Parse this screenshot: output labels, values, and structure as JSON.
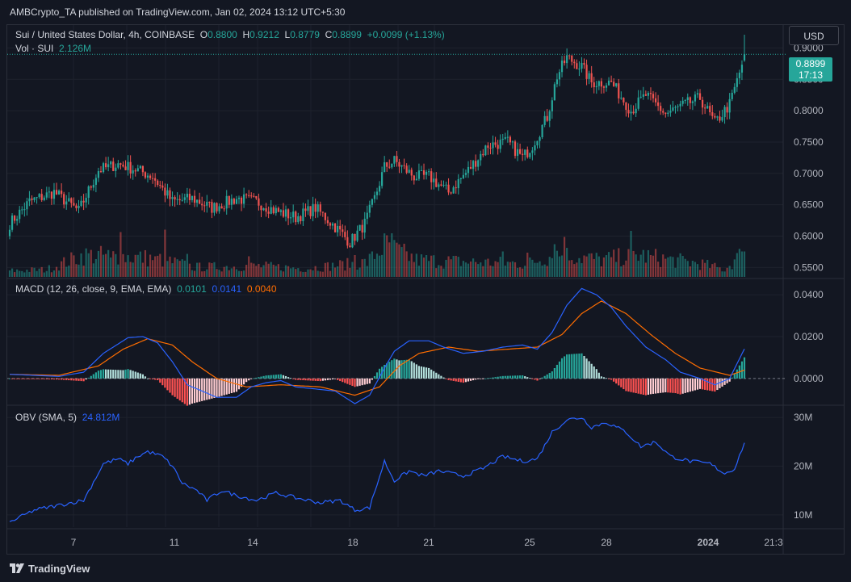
{
  "header": {
    "published": "AMBCrypto_TA published on TradingView.com, Jan 02, 2024 13:12 UTC+5:30"
  },
  "toolbar": {
    "currency": "USD"
  },
  "legend": {
    "symbol": "Sui / United States Dollar, 4h, COINBASE",
    "o_label": "O",
    "o_value": "0.8800",
    "h_label": "H",
    "h_value": "0.9212",
    "l_label": "L",
    "l_value": "0.8779",
    "c_label": "C",
    "c_value": "0.8899",
    "change": "+0.0099 (+1.13%)",
    "vol_label": "Vol · SUI",
    "vol_value": "2.126M"
  },
  "price_tag": {
    "price": "0.8899",
    "countdown": "17:13"
  },
  "macd_legend": {
    "name": "MACD (12, 26, close, 9, EMA, EMA)",
    "hist": "0.0101",
    "macd": "0.0141",
    "signal": "0.0040"
  },
  "obv_legend": {
    "name": "OBV (SMA, 5)",
    "value": "24.812M"
  },
  "footer": {
    "brand": "TradingView"
  },
  "colors": {
    "up": "#26a69a",
    "down": "#ef5350",
    "macd": "#2962ff",
    "signal": "#ff6d00",
    "obv": "#2962ff",
    "hist_up_strong": "#26a69a",
    "hist_up_weak": "#b2dfdb",
    "hist_down_strong": "#ff5252",
    "hist_down_weak": "#ffcdd2"
  },
  "chart_data": [
    {
      "type": "candlestick",
      "title": "Sui / United States Dollar, 4h, COINBASE",
      "x_ticks": [
        "7",
        "11",
        "14",
        "18",
        "21",
        "25",
        "28",
        "2024",
        "21:3"
      ],
      "y_ticks": [
        "0.5500",
        "0.6000",
        "0.6500",
        "0.7000",
        "0.7500",
        "0.8000",
        "0.8500",
        "0.9000"
      ],
      "ylim": [
        0.535,
        0.925
      ],
      "close_anchors": [
        [
          0,
          0.62
        ],
        [
          8,
          0.655
        ],
        [
          18,
          0.67
        ],
        [
          28,
          0.64
        ],
        [
          36,
          0.705
        ],
        [
          44,
          0.715
        ],
        [
          52,
          0.705
        ],
        [
          58,
          0.695
        ],
        [
          66,
          0.655
        ],
        [
          74,
          0.66
        ],
        [
          82,
          0.645
        ],
        [
          92,
          0.66
        ],
        [
          100,
          0.655
        ],
        [
          108,
          0.64
        ],
        [
          116,
          0.63
        ],
        [
          124,
          0.645
        ],
        [
          132,
          0.615
        ],
        [
          138,
          0.59
        ],
        [
          144,
          0.62
        ],
        [
          148,
          0.66
        ],
        [
          152,
          0.71
        ],
        [
          156,
          0.72
        ],
        [
          164,
          0.695
        ],
        [
          170,
          0.695
        ],
        [
          178,
          0.67
        ],
        [
          186,
          0.705
        ],
        [
          194,
          0.745
        ],
        [
          202,
          0.75
        ],
        [
          208,
          0.725
        ],
        [
          212,
          0.745
        ],
        [
          218,
          0.79
        ],
        [
          222,
          0.855
        ],
        [
          226,
          0.885
        ],
        [
          232,
          0.87
        ],
        [
          236,
          0.845
        ],
        [
          244,
          0.845
        ],
        [
          252,
          0.8
        ],
        [
          258,
          0.825
        ],
        [
          266,
          0.795
        ],
        [
          274,
          0.81
        ],
        [
          280,
          0.82
        ],
        [
          286,
          0.78
        ],
        [
          292,
          0.81
        ],
        [
          296,
          0.86
        ],
        [
          298,
          0.889
        ]
      ],
      "last": {
        "open": 0.88,
        "high": 0.9212,
        "low": 0.8779,
        "close": 0.8899
      },
      "volume_anchors": [
        [
          0,
          0.5
        ],
        [
          15,
          0.6
        ],
        [
          30,
          1.8
        ],
        [
          45,
          1.7
        ],
        [
          60,
          1.5
        ],
        [
          75,
          0.8
        ],
        [
          100,
          0.9
        ],
        [
          120,
          0.7
        ],
        [
          135,
          1.0
        ],
        [
          145,
          1.2
        ],
        [
          152,
          2.6
        ],
        [
          165,
          1.4
        ],
        [
          190,
          1.2
        ],
        [
          210,
          1.1
        ],
        [
          222,
          1.9
        ],
        [
          240,
          1.4
        ],
        [
          255,
          1.8
        ],
        [
          265,
          1.5
        ],
        [
          280,
          1.1
        ],
        [
          290,
          0.6
        ],
        [
          298,
          2.1
        ]
      ],
      "volume_spikes": [
        [
          41,
          1.6
        ],
        [
          45,
          3.7
        ],
        [
          59,
          1.7
        ],
        [
          63,
          3.9
        ],
        [
          72,
          1.9
        ],
        [
          97,
          1.7
        ],
        [
          140,
          1.8
        ],
        [
          155,
          3.6
        ],
        [
          200,
          2.1
        ],
        [
          210,
          2.0
        ],
        [
          221,
          2.7
        ],
        [
          225,
          3.3
        ],
        [
          252,
          3.8
        ],
        [
          260,
          1.8
        ],
        [
          297,
          2.1
        ],
        [
          298,
          2.1
        ]
      ]
    },
    {
      "type": "macd",
      "title": "MACD (12, 26, close, 9, EMA, EMA)",
      "y_ticks": [
        "0.0000",
        "0.0200",
        "0.0400"
      ],
      "ylim": [
        -0.012,
        0.047
      ],
      "macd_anchors": [
        [
          0,
          0.002
        ],
        [
          10,
          0.0015
        ],
        [
          20,
          0.001
        ],
        [
          30,
          0.003
        ],
        [
          38,
          0.012
        ],
        [
          48,
          0.0195
        ],
        [
          54,
          0.02
        ],
        [
          60,
          0.017
        ],
        [
          66,
          0.008
        ],
        [
          72,
          -0.003
        ],
        [
          78,
          -0.006
        ],
        [
          84,
          -0.009
        ],
        [
          92,
          -0.009
        ],
        [
          98,
          -0.004
        ],
        [
          104,
          -0.002
        ],
        [
          110,
          -0.001
        ],
        [
          116,
          -0.004
        ],
        [
          124,
          -0.005
        ],
        [
          132,
          -0.006
        ],
        [
          140,
          -0.012
        ],
        [
          146,
          -0.008
        ],
        [
          152,
          0.005
        ],
        [
          156,
          0.013
        ],
        [
          162,
          0.018
        ],
        [
          170,
          0.018
        ],
        [
          176,
          0.015
        ],
        [
          184,
          0.012
        ],
        [
          192,
          0.013
        ],
        [
          200,
          0.015
        ],
        [
          208,
          0.016
        ],
        [
          214,
          0.014
        ],
        [
          220,
          0.022
        ],
        [
          226,
          0.035
        ],
        [
          232,
          0.043
        ],
        [
          238,
          0.04
        ],
        [
          244,
          0.034
        ],
        [
          250,
          0.025
        ],
        [
          258,
          0.015
        ],
        [
          266,
          0.009
        ],
        [
          272,
          0.003
        ],
        [
          280,
          0.0
        ],
        [
          286,
          -0.003
        ],
        [
          292,
          0.0
        ],
        [
          298,
          0.0141
        ]
      ],
      "signal_anchors": [
        [
          0,
          0.002
        ],
        [
          20,
          0.0015
        ],
        [
          36,
          0.006
        ],
        [
          46,
          0.014
        ],
        [
          56,
          0.019
        ],
        [
          66,
          0.016
        ],
        [
          74,
          0.008
        ],
        [
          84,
          0.0
        ],
        [
          96,
          -0.004
        ],
        [
          110,
          -0.003
        ],
        [
          126,
          -0.004
        ],
        [
          140,
          -0.008
        ],
        [
          150,
          -0.004
        ],
        [
          158,
          0.006
        ],
        [
          166,
          0.012
        ],
        [
          178,
          0.015
        ],
        [
          190,
          0.013
        ],
        [
          202,
          0.014
        ],
        [
          214,
          0.015
        ],
        [
          224,
          0.021
        ],
        [
          232,
          0.031
        ],
        [
          240,
          0.037
        ],
        [
          250,
          0.031
        ],
        [
          260,
          0.021
        ],
        [
          270,
          0.012
        ],
        [
          280,
          0.005
        ],
        [
          292,
          0.0015
        ],
        [
          298,
          0.004
        ]
      ]
    },
    {
      "type": "line",
      "title": "OBV (SMA, 5)",
      "y_ticks": [
        "10M",
        "20M",
        "30M"
      ],
      "ylim": [
        8,
        32
      ],
      "obv_anchors": [
        [
          0,
          8.5
        ],
        [
          10,
          11
        ],
        [
          20,
          12
        ],
        [
          30,
          13
        ],
        [
          38,
          20.5
        ],
        [
          44,
          21.5
        ],
        [
          48,
          20.5
        ],
        [
          52,
          22
        ],
        [
          56,
          23
        ],
        [
          62,
          22
        ],
        [
          66,
          20
        ],
        [
          70,
          16.5
        ],
        [
          76,
          15
        ],
        [
          80,
          13
        ],
        [
          86,
          15
        ],
        [
          92,
          14
        ],
        [
          100,
          13
        ],
        [
          108,
          14.5
        ],
        [
          116,
          13.5
        ],
        [
          126,
          12.5
        ],
        [
          134,
          13
        ],
        [
          140,
          11
        ],
        [
          146,
          11.5
        ],
        [
          152,
          21
        ],
        [
          156,
          17
        ],
        [
          162,
          19
        ],
        [
          168,
          18
        ],
        [
          174,
          19
        ],
        [
          184,
          18
        ],
        [
          192,
          19.5
        ],
        [
          200,
          22
        ],
        [
          208,
          21
        ],
        [
          214,
          21.5
        ],
        [
          220,
          27
        ],
        [
          226,
          29.5
        ],
        [
          232,
          30
        ],
        [
          236,
          28
        ],
        [
          242,
          29
        ],
        [
          250,
          27
        ],
        [
          256,
          24
        ],
        [
          262,
          25
        ],
        [
          268,
          22
        ],
        [
          276,
          21
        ],
        [
          284,
          20.5
        ],
        [
          290,
          18.5
        ],
        [
          294,
          19.5
        ],
        [
          298,
          24.8
        ]
      ]
    }
  ]
}
